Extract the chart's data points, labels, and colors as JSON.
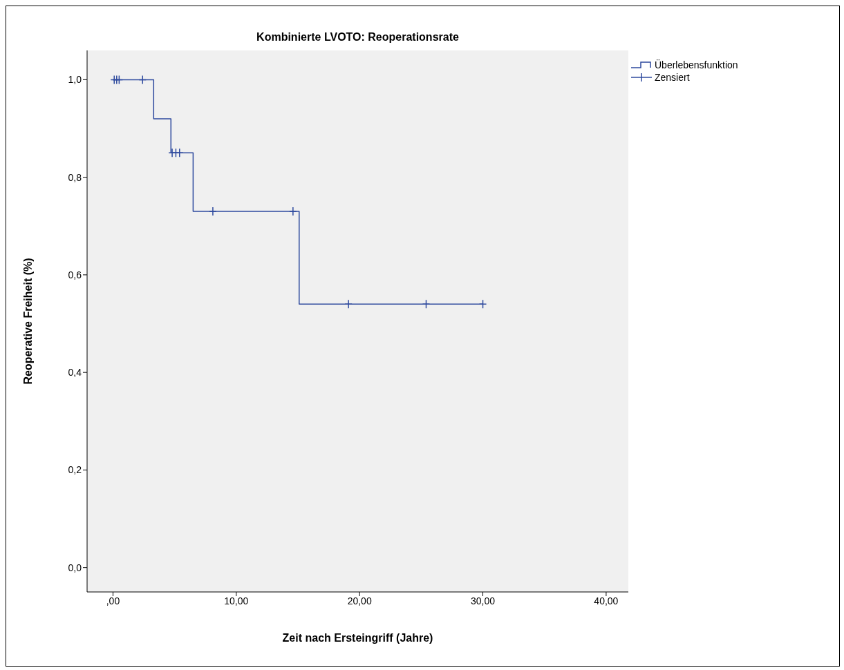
{
  "chart_data": {
    "type": "step",
    "title": "Kombinierte LVOTO: Reoperationsrate",
    "xlabel": "Zeit nach Ersteingriff (Jahre)",
    "ylabel": "Reoperative Freiheit (%)",
    "xlim": [
      -2.1,
      41.8
    ],
    "ylim": [
      -0.05,
      1.06
    ],
    "xticks": [
      {
        "value": 0,
        "label": ",00"
      },
      {
        "value": 10,
        "label": "10,00"
      },
      {
        "value": 20,
        "label": "20,00"
      },
      {
        "value": 30,
        "label": "30,00"
      },
      {
        "value": 40,
        "label": "40,00"
      }
    ],
    "yticks": [
      {
        "value": 0,
        "label": "0,0"
      },
      {
        "value": 0.2,
        "label": "0,2"
      },
      {
        "value": 0.4,
        "label": "0,4"
      },
      {
        "value": 0.6,
        "label": "0,6"
      },
      {
        "value": 0.8,
        "label": "0,8"
      },
      {
        "value": 1,
        "label": "1,0"
      }
    ],
    "grid": false,
    "legend": "top right",
    "series": [
      {
        "name": "Überlebensfunktion",
        "color": "#2e4a9e",
        "marker": "none",
        "x": [
          0,
          3.3,
          4.7,
          6.5,
          15.1,
          30.0
        ],
        "values": [
          1,
          0.92,
          0.85,
          0.73,
          0.54,
          0.54
        ]
      },
      {
        "name": "Zensiert",
        "type": "scatter",
        "color": "#2e4a9e",
        "marker": "cross",
        "x": [
          0.1,
          0.3,
          0.5,
          2.4,
          4.8,
          5.1,
          5.4,
          8.1,
          14.6,
          19.1,
          25.4,
          30.0
        ],
        "values": [
          1,
          1,
          1,
          1,
          0.85,
          0.85,
          0.85,
          0.73,
          0.73,
          0.54,
          0.54,
          0.54
        ]
      }
    ]
  }
}
